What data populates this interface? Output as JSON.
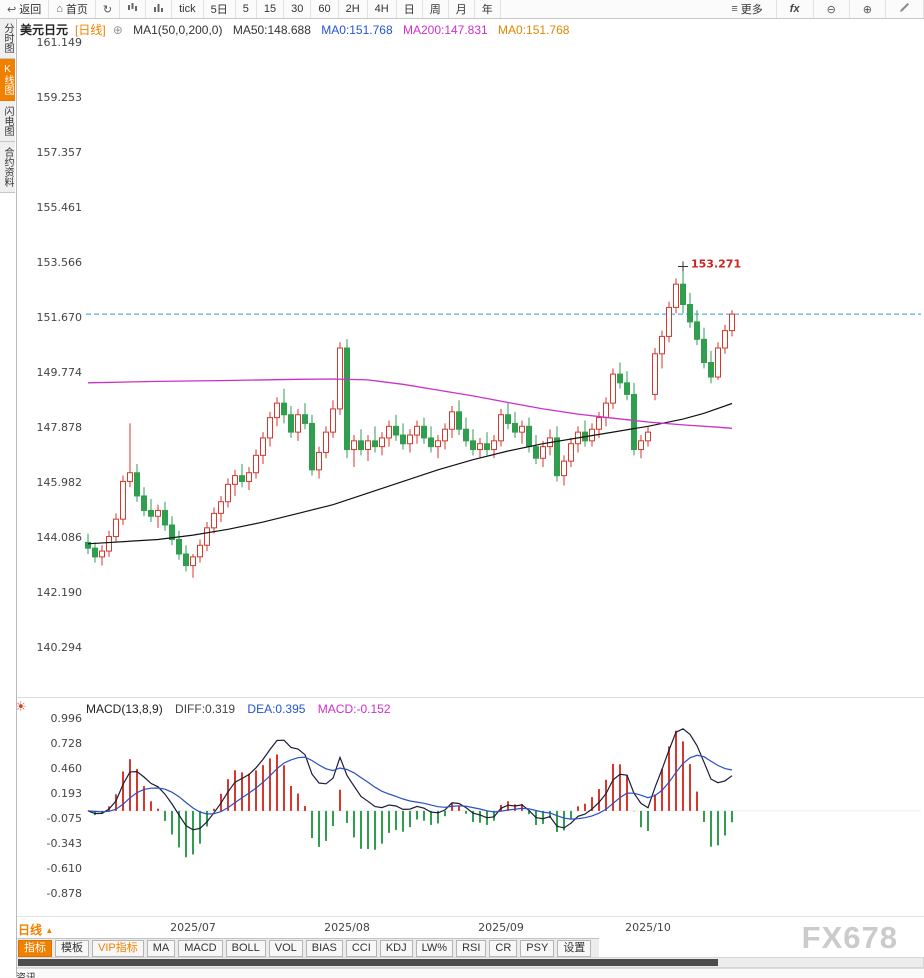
{
  "toolbar": {
    "back_label": "返回",
    "home_label": "首页",
    "tick_label": "tick",
    "five_day_label": "5日",
    "intervals": [
      "5",
      "15",
      "30",
      "60",
      "2H",
      "4H",
      "日",
      "周",
      "月",
      "年"
    ],
    "more_label": "更多",
    "fx_label": "fx"
  },
  "sidebar": {
    "items": [
      {
        "label": "分时图",
        "active": false
      },
      {
        "label": "K线图",
        "active": true
      },
      {
        "label": "闪电图",
        "active": false
      },
      {
        "label": "合约资料",
        "active": false
      }
    ]
  },
  "chart_header": {
    "symbol": "美元日元",
    "period_tag": "[日线]",
    "expand_icon": "⊕",
    "ma_settings": "MA1(50,0,200,0)",
    "ma50": "MA50:148.688",
    "ma0_blue": "MA0:151.768",
    "ma200": "MA200:147.831",
    "ma0_orange": "MA0:151.768"
  },
  "macd_header": {
    "title": "MACD(13,8,9)",
    "diff": "DIFF:0.319",
    "dea": "DEA:0.395",
    "macd": "MACD:-0.152"
  },
  "bottom": {
    "period_label": "日线",
    "tabs": [
      "指标",
      "模板",
      "VIP指标",
      "MA",
      "MACD",
      "BOLL",
      "VOL",
      "BIAS",
      "CCI",
      "KDJ",
      "LW%",
      "RSI",
      "CR",
      "PSY",
      "设置"
    ],
    "watermark": "FX678",
    "news_label": "资讯"
  },
  "chart_data": {
    "type": "candlestick",
    "title": "美元日元 [日线]",
    "y_axis_labels": [
      "161.149",
      "159.253",
      "157.357",
      "155.461",
      "153.566",
      "151.670",
      "149.774",
      "147.878",
      "145.982",
      "144.086",
      "142.190",
      "140.294"
    ],
    "x_labels": [
      {
        "index": 15,
        "label": "2025/07"
      },
      {
        "index": 37,
        "label": "2025/08"
      },
      {
        "index": 59,
        "label": "2025/09"
      },
      {
        "index": 80,
        "label": "2025/10"
      }
    ],
    "last_price": 151.768,
    "peak_annotation": {
      "index": 85,
      "price": 153.271,
      "label": "153.271"
    },
    "candles": [
      [
        143.9,
        144.2,
        143.5,
        143.7
      ],
      [
        143.7,
        143.9,
        143.2,
        143.4
      ],
      [
        143.4,
        143.8,
        143.1,
        143.6
      ],
      [
        143.6,
        144.3,
        143.4,
        144.1
      ],
      [
        144.1,
        144.9,
        143.9,
        144.7
      ],
      [
        144.7,
        146.2,
        144.5,
        146.0
      ],
      [
        146.0,
        148.0,
        145.8,
        146.3
      ],
      [
        146.3,
        146.6,
        145.3,
        145.5
      ],
      [
        145.5,
        145.8,
        144.8,
        145.0
      ],
      [
        145.0,
        145.4,
        144.6,
        144.8
      ],
      [
        144.8,
        145.2,
        144.4,
        145.0
      ],
      [
        145.0,
        145.3,
        144.3,
        144.5
      ],
      [
        144.5,
        144.8,
        143.8,
        144.0
      ],
      [
        144.0,
        144.3,
        143.3,
        143.5
      ],
      [
        143.5,
        143.8,
        142.9,
        143.1
      ],
      [
        143.1,
        143.5,
        142.68,
        143.4
      ],
      [
        143.4,
        144.0,
        143.2,
        143.8
      ],
      [
        143.8,
        144.6,
        143.6,
        144.4
      ],
      [
        144.4,
        145.1,
        144.2,
        144.9
      ],
      [
        144.9,
        145.5,
        144.6,
        145.3
      ],
      [
        145.3,
        146.1,
        145.1,
        145.9
      ],
      [
        145.9,
        146.4,
        145.5,
        146.2
      ],
      [
        146.2,
        146.6,
        145.8,
        146.0
      ],
      [
        146.0,
        146.5,
        145.7,
        146.3
      ],
      [
        146.3,
        147.1,
        146.1,
        146.9
      ],
      [
        146.9,
        147.7,
        146.6,
        147.5
      ],
      [
        147.5,
        148.4,
        147.2,
        148.2
      ],
      [
        148.2,
        148.9,
        147.9,
        148.7
      ],
      [
        148.7,
        149.2,
        148.0,
        148.3
      ],
      [
        148.3,
        148.6,
        147.5,
        147.7
      ],
      [
        147.7,
        148.5,
        147.4,
        148.3
      ],
      [
        148.3,
        148.7,
        147.8,
        148.0
      ],
      [
        148.0,
        148.3,
        146.2,
        146.4
      ],
      [
        146.4,
        147.2,
        146.1,
        147.0
      ],
      [
        147.0,
        147.9,
        146.8,
        147.7
      ],
      [
        147.7,
        148.8,
        147.5,
        148.5
      ],
      [
        148.5,
        150.8,
        148.3,
        150.6
      ],
      [
        150.6,
        150.9,
        146.8,
        147.1
      ],
      [
        147.1,
        147.6,
        146.5,
        147.4
      ],
      [
        147.4,
        147.8,
        146.9,
        147.1
      ],
      [
        147.1,
        147.6,
        146.7,
        147.4
      ],
      [
        147.4,
        147.9,
        147.0,
        147.2
      ],
      [
        147.2,
        147.7,
        146.9,
        147.5
      ],
      [
        147.5,
        148.1,
        147.2,
        147.9
      ],
      [
        147.9,
        148.3,
        147.4,
        147.6
      ],
      [
        147.6,
        148.0,
        147.1,
        147.3
      ],
      [
        147.3,
        147.8,
        147.0,
        147.6
      ],
      [
        147.6,
        148.1,
        147.3,
        147.9
      ],
      [
        147.9,
        148.2,
        147.3,
        147.5
      ],
      [
        147.5,
        147.9,
        147.0,
        147.2
      ],
      [
        147.2,
        147.6,
        146.8,
        147.4
      ],
      [
        147.4,
        148.0,
        147.1,
        147.8
      ],
      [
        147.8,
        148.6,
        147.5,
        148.4
      ],
      [
        148.4,
        148.8,
        147.6,
        147.8
      ],
      [
        147.8,
        148.2,
        147.2,
        147.4
      ],
      [
        147.4,
        147.8,
        146.9,
        147.1
      ],
      [
        147.1,
        147.5,
        146.8,
        147.3
      ],
      [
        147.3,
        147.7,
        146.9,
        147.1
      ],
      [
        147.1,
        147.6,
        146.8,
        147.4
      ],
      [
        147.4,
        148.5,
        147.2,
        148.3
      ],
      [
        148.3,
        148.7,
        147.8,
        148.0
      ],
      [
        148.0,
        148.4,
        147.5,
        147.7
      ],
      [
        147.7,
        148.1,
        147.3,
        147.9
      ],
      [
        147.9,
        148.2,
        147.0,
        147.2
      ],
      [
        147.2,
        147.6,
        146.6,
        146.8
      ],
      [
        146.8,
        147.4,
        146.5,
        147.2
      ],
      [
        147.2,
        147.8,
        146.9,
        147.5
      ],
      [
        147.5,
        147.9,
        146.0,
        146.2
      ],
      [
        146.2,
        146.9,
        145.86,
        146.7
      ],
      [
        146.7,
        147.5,
        146.5,
        147.3
      ],
      [
        147.3,
        147.9,
        147.0,
        147.7
      ],
      [
        147.7,
        148.1,
        147.2,
        147.4
      ],
      [
        147.4,
        148.0,
        147.2,
        147.8
      ],
      [
        147.8,
        148.4,
        147.5,
        148.2
      ],
      [
        148.2,
        148.9,
        147.9,
        148.7
      ],
      [
        148.7,
        149.9,
        148.5,
        149.7
      ],
      [
        149.7,
        150.1,
        149.2,
        149.4
      ],
      [
        149.4,
        149.8,
        148.8,
        149.0
      ],
      [
        149.0,
        149.4,
        146.9,
        147.1
      ],
      [
        147.1,
        147.6,
        146.8,
        147.4
      ],
      [
        147.4,
        147.9,
        147.2,
        147.7
      ],
      [
        149.0,
        150.6,
        148.8,
        150.4
      ],
      [
        150.4,
        151.2,
        149.9,
        151.0
      ],
      [
        151.0,
        152.2,
        150.8,
        152.0
      ],
      [
        152.0,
        153.0,
        151.8,
        152.8
      ],
      [
        152.8,
        153.271,
        151.8,
        152.1
      ],
      [
        152.1,
        152.5,
        151.3,
        151.5
      ],
      [
        151.5,
        151.9,
        150.7,
        150.9
      ],
      [
        150.9,
        151.3,
        149.9,
        150.1
      ],
      [
        150.1,
        150.5,
        149.38,
        149.6
      ],
      [
        149.6,
        150.8,
        149.5,
        150.6
      ],
      [
        150.6,
        151.4,
        150.4,
        151.2
      ],
      [
        151.2,
        151.9,
        151.0,
        151.768
      ]
    ],
    "overlays": {
      "ma50_points": [
        [
          0,
          143.85
        ],
        [
          10,
          144.0
        ],
        [
          15,
          144.15
        ],
        [
          20,
          144.35
        ],
        [
          25,
          144.6
        ],
        [
          30,
          144.9
        ],
        [
          35,
          145.2
        ],
        [
          40,
          145.6
        ],
        [
          45,
          146.0
        ],
        [
          50,
          146.4
        ],
        [
          55,
          146.75
        ],
        [
          60,
          147.05
        ],
        [
          65,
          147.3
        ],
        [
          70,
          147.5
        ],
        [
          75,
          147.7
        ],
        [
          80,
          147.9
        ],
        [
          85,
          148.15
        ],
        [
          88,
          148.35
        ],
        [
          92,
          148.688
        ]
      ],
      "ma200_points": [
        [
          0,
          149.4
        ],
        [
          10,
          149.45
        ],
        [
          20,
          149.48
        ],
        [
          30,
          149.52
        ],
        [
          35,
          149.53
        ],
        [
          40,
          149.5
        ],
        [
          45,
          149.35
        ],
        [
          50,
          149.15
        ],
        [
          55,
          148.95
        ],
        [
          60,
          148.72
        ],
        [
          65,
          148.5
        ],
        [
          70,
          148.32
        ],
        [
          75,
          148.18
        ],
        [
          80,
          148.05
        ],
        [
          85,
          147.95
        ],
        [
          90,
          147.87
        ],
        [
          92,
          147.831
        ]
      ]
    },
    "macd": {
      "params": [
        13,
        8,
        9
      ],
      "display": {
        "diff": 0.319,
        "dea": 0.395,
        "macd": -0.152
      },
      "y_axis_labels": [
        "0.996",
        "0.728",
        "0.460",
        "0.193",
        "-0.075",
        "-0.343",
        "-0.610",
        "-0.878"
      ]
    },
    "colors": {
      "up": "#d7372c",
      "down": "#2f9e4f",
      "ma50": "#111111",
      "ma200": "#cc2fcc",
      "diff_line": "#1c1c3a",
      "dea_line": "#2a4fc0",
      "price_line": "#2b9bd4",
      "annotation": "#cc2222",
      "hist_pos": "#d7372c",
      "hist_neg": "#2f9e4f",
      "accent": "#f08100"
    }
  }
}
